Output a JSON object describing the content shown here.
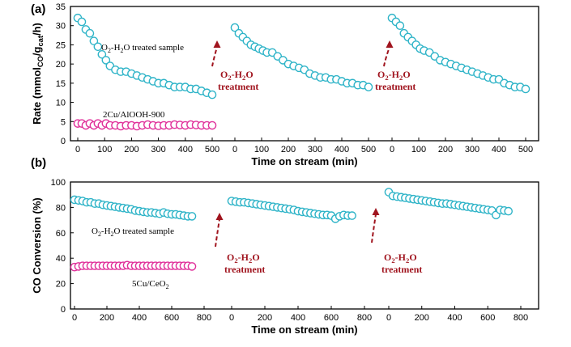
{
  "chart_data": [
    {
      "type": "scatter",
      "panel_label": "(a)",
      "ylabel": "Rate (mmol",
      "ylabel_sub": "CO",
      "ylabel_end": "/g",
      "ylabel_sub2": "cat",
      "ylabel_tail": "/h)",
      "xlabel": "Time on stream (min)",
      "ylim": [
        0,
        35
      ],
      "yticks": [
        "0",
        "5",
        "10",
        "15",
        "20",
        "25",
        "30",
        "35"
      ],
      "xlim": [
        0,
        500
      ],
      "xticks": [
        "0",
        "100",
        "200",
        "300",
        "400",
        "500"
      ],
      "series": [
        {
          "name": "O2-H2O treated sample",
          "label_main": "O",
          "label_sub": "2",
          "label_rest": "-H",
          "label_sub2": "2",
          "label_end": "O treated sample",
          "color": "#2fb4c8",
          "segments": [
            [
              [
                0,
                32
              ],
              [
                15,
                31
              ],
              [
                30,
                29
              ],
              [
                45,
                28
              ],
              [
                60,
                26
              ],
              [
                75,
                24.5
              ],
              [
                90,
                22.5
              ],
              [
                105,
                21
              ],
              [
                120,
                19.5
              ],
              [
                140,
                18.5
              ],
              [
                160,
                18
              ],
              [
                180,
                18
              ],
              [
                200,
                17.5
              ],
              [
                220,
                17
              ],
              [
                240,
                16.5
              ],
              [
                260,
                16
              ],
              [
                280,
                15.5
              ],
              [
                300,
                15
              ],
              [
                320,
                15
              ],
              [
                340,
                14.5
              ],
              [
                360,
                14
              ],
              [
                380,
                14
              ],
              [
                400,
                14
              ],
              [
                420,
                13.5
              ],
              [
                440,
                13.5
              ],
              [
                460,
                13
              ],
              [
                480,
                12.5
              ],
              [
                500,
                12
              ]
            ],
            [
              [
                0,
                29.5
              ],
              [
                15,
                28
              ],
              [
                30,
                27
              ],
              [
                45,
                26
              ],
              [
                60,
                25
              ],
              [
                75,
                24.5
              ],
              [
                90,
                24
              ],
              [
                105,
                23.5
              ],
              [
                120,
                23
              ],
              [
                140,
                23
              ],
              [
                160,
                22
              ],
              [
                180,
                21
              ],
              [
                200,
                20
              ],
              [
                220,
                19.5
              ],
              [
                240,
                19
              ],
              [
                260,
                18.5
              ],
              [
                280,
                17.5
              ],
              [
                300,
                17
              ],
              [
                320,
                16.5
              ],
              [
                340,
                16.5
              ],
              [
                360,
                16
              ],
              [
                380,
                16
              ],
              [
                400,
                15.5
              ],
              [
                420,
                15
              ],
              [
                440,
                15
              ],
              [
                460,
                14.5
              ],
              [
                480,
                14.5
              ],
              [
                500,
                14
              ]
            ],
            [
              [
                0,
                32
              ],
              [
                15,
                31
              ],
              [
                30,
                30
              ],
              [
                45,
                28
              ],
              [
                60,
                27
              ],
              [
                75,
                26
              ],
              [
                90,
                25
              ],
              [
                105,
                24
              ],
              [
                120,
                23.5
              ],
              [
                140,
                23
              ],
              [
                160,
                22
              ],
              [
                180,
                21
              ],
              [
                200,
                20.5
              ],
              [
                220,
                20
              ],
              [
                240,
                19.5
              ],
              [
                260,
                19
              ],
              [
                280,
                18.5
              ],
              [
                300,
                18
              ],
              [
                320,
                17.5
              ],
              [
                340,
                17
              ],
              [
                360,
                16.5
              ],
              [
                380,
                16
              ],
              [
                400,
                16
              ],
              [
                420,
                15
              ],
              [
                440,
                14.5
              ],
              [
                460,
                14
              ],
              [
                480,
                14
              ],
              [
                500,
                13.5
              ]
            ]
          ]
        },
        {
          "name": "2Cu/AlOOH-900",
          "label": "2Cu/AlOOH-900",
          "color": "#e0309a",
          "segments": [
            [
              [
                0,
                4.5
              ],
              [
                15,
                4.5
              ],
              [
                30,
                4
              ],
              [
                45,
                4.5
              ],
              [
                60,
                4
              ],
              [
                75,
                4.5
              ],
              [
                90,
                4
              ],
              [
                105,
                4.5
              ],
              [
                120,
                4
              ],
              [
                140,
                4
              ],
              [
                160,
                3.8
              ],
              [
                180,
                4
              ],
              [
                200,
                4
              ],
              [
                220,
                3.8
              ],
              [
                240,
                4
              ],
              [
                260,
                4.2
              ],
              [
                280,
                4
              ],
              [
                300,
                3.9
              ],
              [
                320,
                4
              ],
              [
                340,
                4
              ],
              [
                360,
                4.2
              ],
              [
                380,
                4.1
              ],
              [
                400,
                4
              ],
              [
                420,
                4.2
              ],
              [
                440,
                4.1
              ],
              [
                460,
                4
              ],
              [
                480,
                4
              ],
              [
                500,
                4
              ]
            ]
          ]
        }
      ],
      "treatment_label_1": "O",
      "treatment_sub_1": "2",
      "treatment_mid_1": "-H",
      "treatment_sub2_1": "2",
      "treatment_end_1": "O",
      "treatment_word": "treatment"
    },
    {
      "type": "scatter",
      "panel_label": "(b)",
      "ylabel": "CO Conversion (%)",
      "xlabel": "Time on stream (min)",
      "ylim": [
        0,
        100
      ],
      "yticks": [
        "0",
        "20",
        "40",
        "60",
        "80",
        "100"
      ],
      "xlim": [
        0,
        800
      ],
      "xticks": [
        "0",
        "200",
        "400",
        "600",
        "800"
      ],
      "series": [
        {
          "name": "O2-H2O treated sample",
          "label_main": "O",
          "label_sub": "2",
          "label_rest": "-H",
          "label_sub2": "2",
          "label_end": "O treated sample",
          "color": "#2fb4c8",
          "segments": [
            [
              [
                0,
                86
              ],
              [
                25,
                85.5
              ],
              [
                50,
                85
              ],
              [
                75,
                84
              ],
              [
                100,
                84
              ],
              [
                125,
                83
              ],
              [
                150,
                83
              ],
              [
                175,
                82
              ],
              [
                200,
                81.5
              ],
              [
                225,
                81
              ],
              [
                250,
                80.5
              ],
              [
                275,
                80
              ],
              [
                300,
                79.5
              ],
              [
                325,
                79
              ],
              [
                350,
                78.5
              ],
              [
                375,
                77.5
              ],
              [
                400,
                77
              ],
              [
                425,
                76.5
              ],
              [
                450,
                76
              ],
              [
                475,
                76
              ],
              [
                500,
                75.5
              ],
              [
                525,
                75
              ],
              [
                550,
                76
              ],
              [
                575,
                75
              ],
              [
                600,
                74.5
              ],
              [
                625,
                74.5
              ],
              [
                650,
                74
              ],
              [
                675,
                73.5
              ],
              [
                700,
                73
              ],
              [
                725,
                73
              ]
            ],
            [
              [
                0,
                85
              ],
              [
                25,
                84.5
              ],
              [
                50,
                84
              ],
              [
                75,
                84
              ],
              [
                100,
                83.5
              ],
              [
                125,
                83
              ],
              [
                150,
                82.5
              ],
              [
                175,
                82
              ],
              [
                200,
                81.5
              ],
              [
                225,
                81
              ],
              [
                250,
                80.5
              ],
              [
                275,
                80
              ],
              [
                300,
                79.5
              ],
              [
                325,
                79
              ],
              [
                350,
                78.5
              ],
              [
                375,
                78
              ],
              [
                400,
                77
              ],
              [
                425,
                76.5
              ],
              [
                450,
                76
              ],
              [
                475,
                75.5
              ],
              [
                500,
                75
              ],
              [
                525,
                74.5
              ],
              [
                550,
                74
              ],
              [
                575,
                74
              ],
              [
                600,
                73.5
              ],
              [
                625,
                71
              ],
              [
                650,
                73
              ],
              [
                675,
                74
              ],
              [
                700,
                73.5
              ],
              [
                725,
                73.5
              ]
            ],
            [
              [
                0,
                92
              ],
              [
                25,
                89
              ],
              [
                50,
                88.5
              ],
              [
                75,
                88
              ],
              [
                100,
                87.5
              ],
              [
                125,
                87
              ],
              [
                150,
                86.5
              ],
              [
                175,
                86
              ],
              [
                200,
                85.5
              ],
              [
                225,
                85
              ],
              [
                250,
                84.5
              ],
              [
                275,
                84
              ],
              [
                300,
                83.5
              ],
              [
                325,
                83
              ],
              [
                350,
                83
              ],
              [
                375,
                82.5
              ],
              [
                400,
                82
              ],
              [
                425,
                81.5
              ],
              [
                450,
                81
              ],
              [
                475,
                80.5
              ],
              [
                500,
                80
              ],
              [
                525,
                79.5
              ],
              [
                550,
                79
              ],
              [
                575,
                78.5
              ],
              [
                600,
                78
              ],
              [
                625,
                77.5
              ],
              [
                650,
                74
              ],
              [
                675,
                78
              ],
              [
                700,
                77.5
              ],
              [
                725,
                77
              ]
            ]
          ]
        },
        {
          "name": "5Cu/CeO2",
          "label_main": "5Cu/CeO",
          "label_sub": "2",
          "color": "#e0309a",
          "segments": [
            [
              [
                0,
                33
              ],
              [
                25,
                33.5
              ],
              [
                50,
                34
              ],
              [
                75,
                34
              ],
              [
                100,
                34
              ],
              [
                125,
                34
              ],
              [
                150,
                34
              ],
              [
                175,
                34
              ],
              [
                200,
                34
              ],
              [
                225,
                34
              ],
              [
                250,
                34
              ],
              [
                275,
                34
              ],
              [
                300,
                34
              ],
              [
                325,
                34.5
              ],
              [
                350,
                34
              ],
              [
                375,
                34
              ],
              [
                400,
                34
              ],
              [
                425,
                34
              ],
              [
                450,
                34
              ],
              [
                475,
                34
              ],
              [
                500,
                34
              ],
              [
                525,
                34
              ],
              [
                550,
                34
              ],
              [
                575,
                34
              ],
              [
                600,
                34
              ],
              [
                625,
                34
              ],
              [
                650,
                34
              ],
              [
                675,
                34
              ],
              [
                700,
                34
              ],
              [
                725,
                33.5
              ]
            ]
          ]
        }
      ],
      "treatment_label_1": "O",
      "treatment_sub_1": "2",
      "treatment_mid_1": "-H",
      "treatment_sub2_1": "2",
      "treatment_end_1": "O",
      "treatment_word": "treatment"
    }
  ]
}
